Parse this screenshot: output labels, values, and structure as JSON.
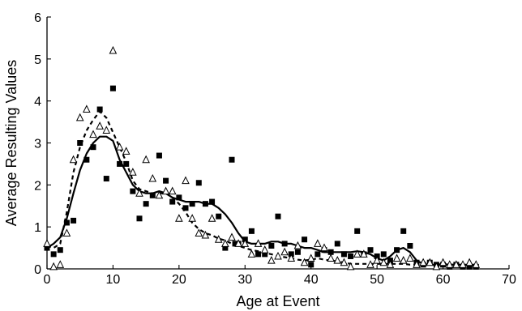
{
  "chart_data": {
    "type": "scatter",
    "title": "",
    "xlabel": "Age at Event",
    "ylabel": "Average Resulting Values",
    "xlim": [
      0,
      70
    ],
    "ylim": [
      0,
      6
    ],
    "xticks": [
      "0",
      "10",
      "20",
      "30",
      "40",
      "50",
      "60",
      "70"
    ],
    "yticks": [
      "0",
      "1",
      "2",
      "3",
      "4",
      "5",
      "6"
    ],
    "grid": false,
    "legend": "none",
    "series": [
      {
        "marker": "filled-square",
        "color": "#000000",
        "points": [
          [
            0,
            0.5
          ],
          [
            1,
            0.35
          ],
          [
            2,
            0.45
          ],
          [
            3,
            1.1
          ],
          [
            4,
            1.15
          ],
          [
            5,
            3.0
          ],
          [
            6,
            2.6
          ],
          [
            7,
            2.9
          ],
          [
            8,
            3.8
          ],
          [
            9,
            2.15
          ],
          [
            10,
            4.3
          ],
          [
            11,
            2.5
          ],
          [
            12,
            2.5
          ],
          [
            13,
            1.85
          ],
          [
            14,
            1.2
          ],
          [
            15,
            1.55
          ],
          [
            16,
            1.75
          ],
          [
            17,
            2.7
          ],
          [
            18,
            2.1
          ],
          [
            19,
            1.6
          ],
          [
            20,
            1.7
          ],
          [
            21,
            1.45
          ],
          [
            22,
            1.55
          ],
          [
            23,
            2.05
          ],
          [
            24,
            1.55
          ],
          [
            25,
            1.6
          ],
          [
            26,
            1.25
          ],
          [
            27,
            0.5
          ],
          [
            28,
            2.6
          ],
          [
            28.5,
            0.6
          ],
          [
            29,
            0.6
          ],
          [
            30,
            0.7
          ],
          [
            31,
            0.9
          ],
          [
            32,
            0.35
          ],
          [
            33,
            0.35
          ],
          [
            34,
            0.55
          ],
          [
            35,
            1.25
          ],
          [
            36,
            0.6
          ],
          [
            37,
            0.35
          ],
          [
            38,
            0.4
          ],
          [
            39,
            0.7
          ],
          [
            40,
            0.1
          ],
          [
            41,
            0.35
          ],
          [
            42,
            0.45
          ],
          [
            43,
            0.4
          ],
          [
            44,
            0.6
          ],
          [
            45,
            0.35
          ],
          [
            46,
            0.3
          ],
          [
            47,
            0.9
          ],
          [
            48,
            0.35
          ],
          [
            49,
            0.45
          ],
          [
            50,
            0.3
          ],
          [
            51,
            0.35
          ],
          [
            52,
            0.2
          ],
          [
            53,
            0.45
          ],
          [
            54,
            0.9
          ],
          [
            55,
            0.55
          ],
          [
            56,
            0.15
          ],
          [
            57,
            0.1
          ],
          [
            58,
            0.15
          ],
          [
            59,
            0.1
          ],
          [
            60,
            0.1
          ],
          [
            61,
            0.05
          ],
          [
            62,
            0.1
          ],
          [
            63,
            0.05
          ],
          [
            64,
            0.05
          ],
          [
            65,
            0.05
          ]
        ]
      },
      {
        "marker": "open-triangle",
        "color": "#000000",
        "points": [
          [
            0,
            0.6
          ],
          [
            1,
            0.05
          ],
          [
            2,
            0.1
          ],
          [
            3,
            0.85
          ],
          [
            4,
            2.6
          ],
          [
            5,
            3.6
          ],
          [
            6,
            3.8
          ],
          [
            7,
            3.2
          ],
          [
            8,
            3.4
          ],
          [
            9,
            3.3
          ],
          [
            10,
            5.2
          ],
          [
            11,
            2.9
          ],
          [
            12,
            2.8
          ],
          [
            13,
            2.3
          ],
          [
            14,
            1.8
          ],
          [
            15,
            2.6
          ],
          [
            16,
            2.15
          ],
          [
            17,
            1.75
          ],
          [
            18,
            1.85
          ],
          [
            19,
            1.85
          ],
          [
            20,
            1.2
          ],
          [
            21,
            2.1
          ],
          [
            22,
            1.2
          ],
          [
            23,
            0.85
          ],
          [
            24,
            0.8
          ],
          [
            25,
            1.2
          ],
          [
            26,
            0.7
          ],
          [
            27,
            0.6
          ],
          [
            28,
            0.75
          ],
          [
            29,
            0.6
          ],
          [
            30,
            0.6
          ],
          [
            31,
            0.35
          ],
          [
            32,
            0.6
          ],
          [
            33,
            0.45
          ],
          [
            34,
            0.2
          ],
          [
            35,
            0.3
          ],
          [
            36,
            0.4
          ],
          [
            37,
            0.25
          ],
          [
            38,
            0.55
          ],
          [
            39,
            0.15
          ],
          [
            40,
            0.25
          ],
          [
            41,
            0.6
          ],
          [
            42,
            0.5
          ],
          [
            43,
            0.25
          ],
          [
            44,
            0.2
          ],
          [
            45,
            0.15
          ],
          [
            46,
            0.05
          ],
          [
            47,
            0.35
          ],
          [
            48,
            0.35
          ],
          [
            49,
            0.1
          ],
          [
            50,
            0.2
          ],
          [
            51,
            0.15
          ],
          [
            52,
            0.1
          ],
          [
            53,
            0.25
          ],
          [
            54,
            0.2
          ],
          [
            55,
            0.25
          ],
          [
            56,
            0.1
          ],
          [
            57,
            0.15
          ],
          [
            58,
            0.15
          ],
          [
            59,
            0.05
          ],
          [
            60,
            0.15
          ],
          [
            61,
            0.1
          ],
          [
            62,
            0.1
          ],
          [
            63,
            0.1
          ],
          [
            64,
            0.15
          ],
          [
            65,
            0.1
          ]
        ]
      },
      {
        "marker": "none",
        "line": "solid",
        "color": "#000000",
        "points": [
          [
            0,
            0.5
          ],
          [
            1,
            0.6
          ],
          [
            2,
            0.75
          ],
          [
            3,
            1.2
          ],
          [
            4,
            1.8
          ],
          [
            5,
            2.35
          ],
          [
            6,
            2.75
          ],
          [
            7,
            3.0
          ],
          [
            8,
            3.15
          ],
          [
            9,
            3.15
          ],
          [
            10,
            3.05
          ],
          [
            11,
            2.6
          ],
          [
            12,
            2.3
          ],
          [
            13,
            2.0
          ],
          [
            14,
            1.85
          ],
          [
            15,
            1.8
          ],
          [
            16,
            1.8
          ],
          [
            17,
            1.85
          ],
          [
            18,
            1.8
          ],
          [
            19,
            1.7
          ],
          [
            20,
            1.65
          ],
          [
            21,
            1.6
          ],
          [
            22,
            1.6
          ],
          [
            23,
            1.6
          ],
          [
            24,
            1.55
          ],
          [
            25,
            1.55
          ],
          [
            26,
            1.45
          ],
          [
            27,
            1.3
          ],
          [
            28,
            1.1
          ],
          [
            29,
            0.85
          ],
          [
            30,
            0.65
          ],
          [
            31,
            0.6
          ],
          [
            32,
            0.6
          ],
          [
            33,
            0.6
          ],
          [
            34,
            0.65
          ],
          [
            35,
            0.65
          ],
          [
            36,
            0.6
          ],
          [
            37,
            0.6
          ],
          [
            38,
            0.55
          ],
          [
            39,
            0.5
          ],
          [
            40,
            0.5
          ],
          [
            41,
            0.45
          ],
          [
            42,
            0.4
          ],
          [
            43,
            0.4
          ],
          [
            44,
            0.4
          ],
          [
            45,
            0.4
          ],
          [
            46,
            0.4
          ],
          [
            47,
            0.42
          ],
          [
            48,
            0.4
          ],
          [
            49,
            0.35
          ],
          [
            50,
            0.25
          ],
          [
            51,
            0.2
          ],
          [
            52,
            0.3
          ],
          [
            53,
            0.45
          ],
          [
            54,
            0.5
          ],
          [
            55,
            0.4
          ],
          [
            56,
            0.2
          ],
          [
            57,
            0.12
          ],
          [
            58,
            0.1
          ],
          [
            59,
            0.1
          ],
          [
            60,
            0.12
          ],
          [
            61,
            0.1
          ],
          [
            62,
            0.1
          ],
          [
            63,
            0.1
          ],
          [
            64,
            0.08
          ],
          [
            65,
            0.08
          ]
        ]
      },
      {
        "marker": "none",
        "line": "dashed",
        "color": "#000000",
        "points": [
          [
            0,
            0.55
          ],
          [
            1,
            0.5
          ],
          [
            2,
            0.6
          ],
          [
            3,
            1.35
          ],
          [
            4,
            2.3
          ],
          [
            5,
            2.9
          ],
          [
            6,
            3.3
          ],
          [
            7,
            3.55
          ],
          [
            8,
            3.75
          ],
          [
            9,
            3.6
          ],
          [
            10,
            3.25
          ],
          [
            11,
            2.9
          ],
          [
            12,
            2.55
          ],
          [
            13,
            2.1
          ],
          [
            14,
            1.9
          ],
          [
            15,
            1.85
          ],
          [
            16,
            1.8
          ],
          [
            17,
            1.8
          ],
          [
            18,
            1.8
          ],
          [
            19,
            1.7
          ],
          [
            20,
            1.55
          ],
          [
            21,
            1.35
          ],
          [
            22,
            1.1
          ],
          [
            23,
            0.95
          ],
          [
            24,
            0.85
          ],
          [
            25,
            0.8
          ],
          [
            26,
            0.72
          ],
          [
            27,
            0.68
          ],
          [
            28,
            0.6
          ],
          [
            29,
            0.55
          ],
          [
            30,
            0.5
          ],
          [
            31,
            0.45
          ],
          [
            32,
            0.42
          ],
          [
            33,
            0.38
          ],
          [
            34,
            0.35
          ],
          [
            35,
            0.3
          ],
          [
            36,
            0.28
          ],
          [
            37,
            0.25
          ],
          [
            38,
            0.22
          ],
          [
            39,
            0.2
          ],
          [
            40,
            0.22
          ],
          [
            41,
            0.25
          ],
          [
            42,
            0.22
          ],
          [
            43,
            0.2
          ],
          [
            44,
            0.18
          ],
          [
            45,
            0.15
          ],
          [
            46,
            0.12
          ],
          [
            47,
            0.12
          ],
          [
            48,
            0.12
          ],
          [
            49,
            0.12
          ],
          [
            50,
            0.12
          ],
          [
            51,
            0.12
          ],
          [
            52,
            0.12
          ],
          [
            53,
            0.12
          ],
          [
            54,
            0.12
          ],
          [
            55,
            0.1
          ],
          [
            56,
            0.1
          ],
          [
            57,
            0.1
          ],
          [
            58,
            0.1
          ],
          [
            59,
            0.1
          ],
          [
            60,
            0.1
          ],
          [
            61,
            0.1
          ],
          [
            62,
            0.1
          ],
          [
            63,
            0.1
          ],
          [
            64,
            0.1
          ],
          [
            65,
            0.1
          ]
        ]
      }
    ]
  }
}
